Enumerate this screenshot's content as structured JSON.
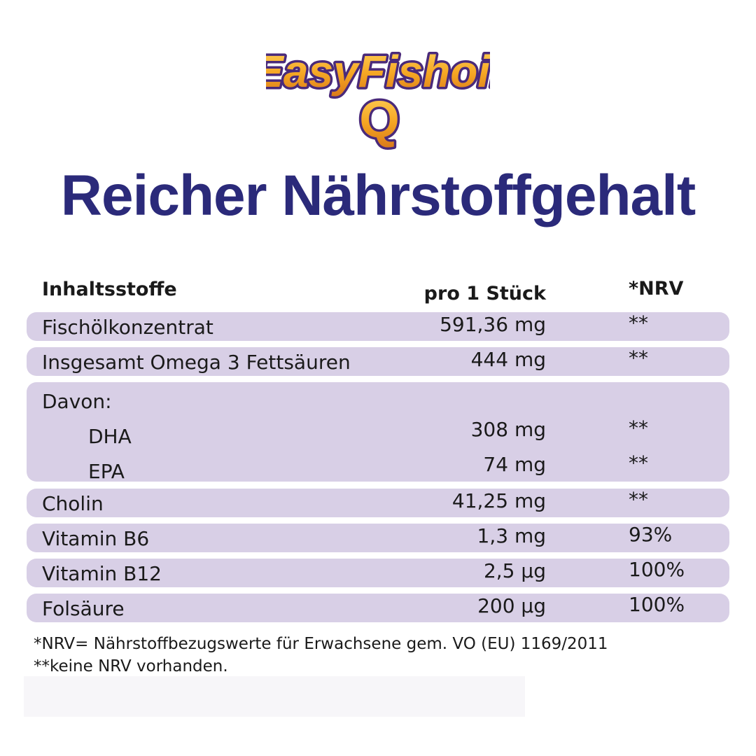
{
  "brand": {
    "logo_line1": "EasyFishoil",
    "logo_line2": "Q"
  },
  "headline": "Reicher Nährstoffgehalt",
  "table": {
    "headers": {
      "name": "Inhaltsstoffe",
      "amount": "pro 1 Stück",
      "nrv": "*NRV"
    },
    "rows": [
      {
        "name": "Fischölkonzentrat",
        "amount": "591,36 mg",
        "nrv": "**"
      },
      {
        "name": "Insgesamt Omega 3 Fettsäuren",
        "amount": "444 mg",
        "nrv": "**"
      },
      {
        "name": "Davon:",
        "amount": "",
        "nrv": ""
      },
      {
        "name": "DHA",
        "amount": "308 mg",
        "nrv": "**"
      },
      {
        "name": "EPA",
        "amount": "74 mg",
        "nrv": "**"
      },
      {
        "name": "Cholin",
        "amount": "41,25 mg",
        "nrv": "**"
      },
      {
        "name": "Vitamin B6",
        "amount": "1,3 mg",
        "nrv": "93%"
      },
      {
        "name": "Vitamin B12",
        "amount": "2,5 µg",
        "nrv": "100%"
      },
      {
        "name": "Folsäure",
        "amount": "200 µg",
        "nrv": "100%"
      }
    ]
  },
  "footnotes": [
    "*NRV= Nährstoffbezugswerte für Erwachsene gem. VO (EU) 1169/2011",
    "**keine NRV vorhanden."
  ],
  "colors": {
    "headline": "#2b2a7a",
    "row_background": "#d8cfe6",
    "logo_fill": "#f5a623",
    "logo_outline": "#4a2a7a"
  }
}
